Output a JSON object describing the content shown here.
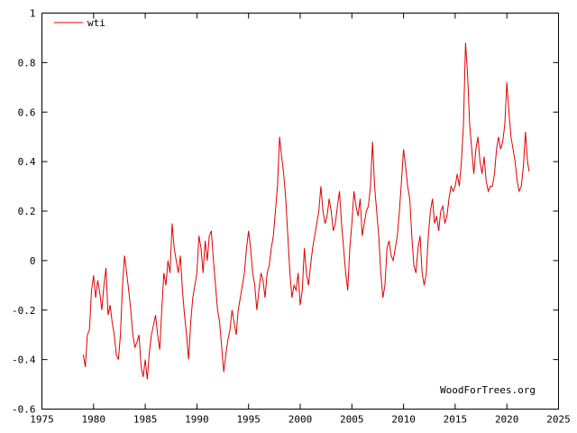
{
  "chart_data": {
    "type": "line",
    "xlim": [
      1975,
      2025
    ],
    "ylim": [
      -0.6,
      1.0
    ],
    "x_ticks": [
      1975,
      1980,
      1985,
      1990,
      1995,
      2000,
      2005,
      2010,
      2015,
      2020,
      2025
    ],
    "y_ticks": [
      -0.6,
      -0.4,
      -0.2,
      0,
      0.2,
      0.4,
      0.6,
      0.8,
      1
    ],
    "x_tick_labels": [
      "1975",
      "1980",
      "1985",
      "1990",
      "1995",
      "2000",
      "2005",
      "2010",
      "2015",
      "2020",
      "2025"
    ],
    "y_tick_labels": [
      "-0.6",
      "-0.4",
      "-0.2",
      "0",
      "0.2",
      "0.4",
      "0.6",
      "0.8",
      "1"
    ],
    "grid": false,
    "legend_position": "top-left",
    "series": [
      {
        "name": "wti",
        "color": "#e00000",
        "points": [
          [
            1979.0,
            -0.38
          ],
          [
            1979.2,
            -0.43
          ],
          [
            1979.4,
            -0.3
          ],
          [
            1979.6,
            -0.28
          ],
          [
            1979.8,
            -0.12
          ],
          [
            1980.0,
            -0.06
          ],
          [
            1980.2,
            -0.15
          ],
          [
            1980.4,
            -0.08
          ],
          [
            1980.6,
            -0.13
          ],
          [
            1980.8,
            -0.2
          ],
          [
            1981.0,
            -0.1
          ],
          [
            1981.2,
            -0.03
          ],
          [
            1981.4,
            -0.22
          ],
          [
            1981.6,
            -0.18
          ],
          [
            1981.8,
            -0.25
          ],
          [
            1982.0,
            -0.3
          ],
          [
            1982.2,
            -0.38
          ],
          [
            1982.4,
            -0.4
          ],
          [
            1982.6,
            -0.3
          ],
          [
            1982.8,
            -0.1
          ],
          [
            1983.0,
            0.02
          ],
          [
            1983.2,
            -0.05
          ],
          [
            1983.4,
            -0.12
          ],
          [
            1983.6,
            -0.2
          ],
          [
            1983.8,
            -0.3
          ],
          [
            1984.0,
            -0.35
          ],
          [
            1984.2,
            -0.33
          ],
          [
            1984.4,
            -0.3
          ],
          [
            1984.6,
            -0.43
          ],
          [
            1984.8,
            -0.47
          ],
          [
            1985.0,
            -0.4
          ],
          [
            1985.2,
            -0.48
          ],
          [
            1985.4,
            -0.37
          ],
          [
            1985.6,
            -0.3
          ],
          [
            1985.8,
            -0.26
          ],
          [
            1986.0,
            -0.22
          ],
          [
            1986.2,
            -0.3
          ],
          [
            1986.4,
            -0.36
          ],
          [
            1986.6,
            -0.2
          ],
          [
            1986.8,
            -0.05
          ],
          [
            1987.0,
            -0.1
          ],
          [
            1987.2,
            0.0
          ],
          [
            1987.4,
            -0.05
          ],
          [
            1987.6,
            0.15
          ],
          [
            1987.8,
            0.05
          ],
          [
            1988.0,
            0.0
          ],
          [
            1988.2,
            -0.05
          ],
          [
            1988.4,
            0.02
          ],
          [
            1988.6,
            -0.12
          ],
          [
            1988.8,
            -0.22
          ],
          [
            1989.0,
            -0.3
          ],
          [
            1989.2,
            -0.4
          ],
          [
            1989.4,
            -0.25
          ],
          [
            1989.6,
            -0.15
          ],
          [
            1989.8,
            -0.1
          ],
          [
            1990.0,
            -0.05
          ],
          [
            1990.2,
            0.1
          ],
          [
            1990.4,
            0.05
          ],
          [
            1990.6,
            -0.05
          ],
          [
            1990.8,
            0.08
          ],
          [
            1991.0,
            0.0
          ],
          [
            1991.2,
            0.1
          ],
          [
            1991.4,
            0.12
          ],
          [
            1991.6,
            0.0
          ],
          [
            1991.8,
            -0.1
          ],
          [
            1992.0,
            -0.2
          ],
          [
            1992.2,
            -0.25
          ],
          [
            1992.4,
            -0.35
          ],
          [
            1992.6,
            -0.45
          ],
          [
            1992.8,
            -0.38
          ],
          [
            1993.0,
            -0.32
          ],
          [
            1993.2,
            -0.28
          ],
          [
            1993.4,
            -0.2
          ],
          [
            1993.6,
            -0.25
          ],
          [
            1993.8,
            -0.3
          ],
          [
            1994.0,
            -0.2
          ],
          [
            1994.2,
            -0.15
          ],
          [
            1994.4,
            -0.1
          ],
          [
            1994.6,
            -0.05
          ],
          [
            1994.8,
            0.05
          ],
          [
            1995.0,
            0.12
          ],
          [
            1995.2,
            0.05
          ],
          [
            1995.4,
            -0.05
          ],
          [
            1995.6,
            -0.1
          ],
          [
            1995.8,
            -0.2
          ],
          [
            1996.0,
            -0.12
          ],
          [
            1996.2,
            -0.05
          ],
          [
            1996.4,
            -0.08
          ],
          [
            1996.6,
            -0.15
          ],
          [
            1996.8,
            -0.05
          ],
          [
            1997.0,
            -0.02
          ],
          [
            1997.2,
            0.05
          ],
          [
            1997.4,
            0.1
          ],
          [
            1997.6,
            0.2
          ],
          [
            1997.8,
            0.3
          ],
          [
            1998.0,
            0.5
          ],
          [
            1998.2,
            0.42
          ],
          [
            1998.4,
            0.35
          ],
          [
            1998.6,
            0.25
          ],
          [
            1998.8,
            0.1
          ],
          [
            1999.0,
            -0.05
          ],
          [
            1999.2,
            -0.15
          ],
          [
            1999.4,
            -0.1
          ],
          [
            1999.6,
            -0.12
          ],
          [
            1999.8,
            -0.05
          ],
          [
            2000.0,
            -0.18
          ],
          [
            2000.2,
            -0.12
          ],
          [
            2000.4,
            0.05
          ],
          [
            2000.6,
            -0.05
          ],
          [
            2000.8,
            -0.1
          ],
          [
            2001.0,
            -0.02
          ],
          [
            2001.2,
            0.05
          ],
          [
            2001.4,
            0.1
          ],
          [
            2001.6,
            0.15
          ],
          [
            2001.8,
            0.2
          ],
          [
            2002.0,
            0.3
          ],
          [
            2002.2,
            0.2
          ],
          [
            2002.4,
            0.15
          ],
          [
            2002.6,
            0.18
          ],
          [
            2002.8,
            0.25
          ],
          [
            2003.0,
            0.2
          ],
          [
            2003.2,
            0.12
          ],
          [
            2003.4,
            0.15
          ],
          [
            2003.6,
            0.22
          ],
          [
            2003.8,
            0.28
          ],
          [
            2004.0,
            0.15
          ],
          [
            2004.2,
            0.05
          ],
          [
            2004.4,
            -0.05
          ],
          [
            2004.6,
            -0.12
          ],
          [
            2004.8,
            0.05
          ],
          [
            2005.0,
            0.15
          ],
          [
            2005.2,
            0.28
          ],
          [
            2005.4,
            0.22
          ],
          [
            2005.6,
            0.18
          ],
          [
            2005.8,
            0.25
          ],
          [
            2006.0,
            0.1
          ],
          [
            2006.2,
            0.15
          ],
          [
            2006.4,
            0.2
          ],
          [
            2006.6,
            0.22
          ],
          [
            2006.8,
            0.3
          ],
          [
            2007.0,
            0.48
          ],
          [
            2007.2,
            0.3
          ],
          [
            2007.4,
            0.2
          ],
          [
            2007.6,
            0.1
          ],
          [
            2007.8,
            -0.05
          ],
          [
            2008.0,
            -0.15
          ],
          [
            2008.2,
            -0.1
          ],
          [
            2008.4,
            0.05
          ],
          [
            2008.6,
            0.08
          ],
          [
            2008.8,
            0.02
          ],
          [
            2009.0,
            0.0
          ],
          [
            2009.2,
            0.05
          ],
          [
            2009.4,
            0.1
          ],
          [
            2009.6,
            0.2
          ],
          [
            2009.8,
            0.32
          ],
          [
            2010.0,
            0.45
          ],
          [
            2010.2,
            0.38
          ],
          [
            2010.4,
            0.3
          ],
          [
            2010.6,
            0.25
          ],
          [
            2010.8,
            0.1
          ],
          [
            2011.0,
            -0.02
          ],
          [
            2011.2,
            -0.05
          ],
          [
            2011.4,
            0.05
          ],
          [
            2011.6,
            0.1
          ],
          [
            2011.8,
            -0.05
          ],
          [
            2012.0,
            -0.1
          ],
          [
            2012.2,
            -0.05
          ],
          [
            2012.4,
            0.1
          ],
          [
            2012.6,
            0.2
          ],
          [
            2012.8,
            0.25
          ],
          [
            2013.0,
            0.15
          ],
          [
            2013.2,
            0.18
          ],
          [
            2013.4,
            0.12
          ],
          [
            2013.6,
            0.2
          ],
          [
            2013.8,
            0.22
          ],
          [
            2014.0,
            0.15
          ],
          [
            2014.2,
            0.18
          ],
          [
            2014.4,
            0.25
          ],
          [
            2014.6,
            0.3
          ],
          [
            2014.8,
            0.28
          ],
          [
            2015.0,
            0.3
          ],
          [
            2015.2,
            0.35
          ],
          [
            2015.4,
            0.3
          ],
          [
            2015.6,
            0.4
          ],
          [
            2015.8,
            0.55
          ],
          [
            2016.0,
            0.88
          ],
          [
            2016.2,
            0.75
          ],
          [
            2016.4,
            0.55
          ],
          [
            2016.6,
            0.45
          ],
          [
            2016.8,
            0.35
          ],
          [
            2017.0,
            0.45
          ],
          [
            2017.2,
            0.5
          ],
          [
            2017.4,
            0.4
          ],
          [
            2017.6,
            0.35
          ],
          [
            2017.8,
            0.42
          ],
          [
            2018.0,
            0.32
          ],
          [
            2018.2,
            0.28
          ],
          [
            2018.4,
            0.3
          ],
          [
            2018.6,
            0.3
          ],
          [
            2018.8,
            0.35
          ],
          [
            2019.0,
            0.45
          ],
          [
            2019.2,
            0.5
          ],
          [
            2019.4,
            0.45
          ],
          [
            2019.6,
            0.48
          ],
          [
            2019.8,
            0.55
          ],
          [
            2020.0,
            0.72
          ],
          [
            2020.2,
            0.6
          ],
          [
            2020.4,
            0.5
          ],
          [
            2020.6,
            0.45
          ],
          [
            2020.8,
            0.4
          ],
          [
            2021.0,
            0.32
          ],
          [
            2021.2,
            0.28
          ],
          [
            2021.4,
            0.3
          ],
          [
            2021.6,
            0.38
          ],
          [
            2021.8,
            0.52
          ],
          [
            2022.0,
            0.4
          ],
          [
            2022.15,
            0.36
          ]
        ]
      }
    ],
    "annotations": [
      "WoodForTrees.org"
    ]
  }
}
